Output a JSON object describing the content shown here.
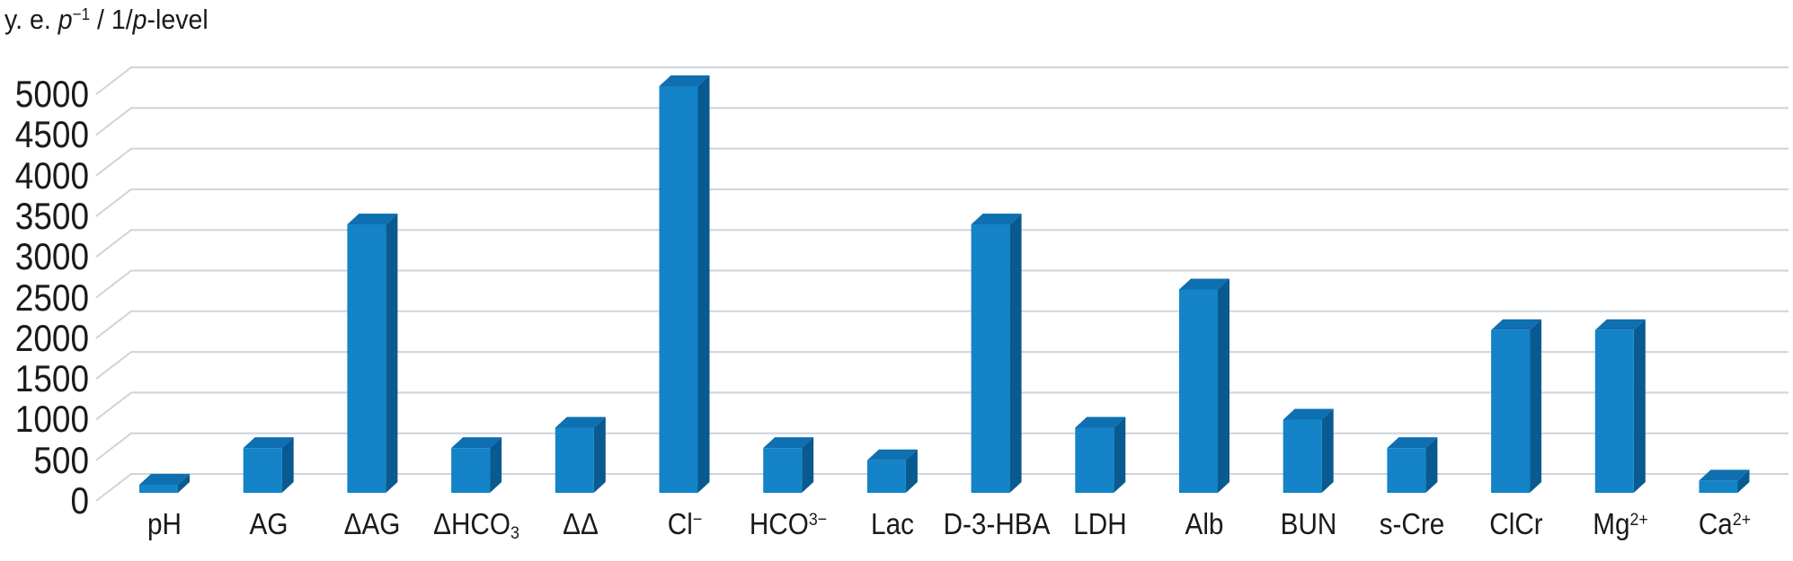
{
  "background_color": "#ffffff",
  "text_color": "#1a1a1a",
  "chart_data": {
    "type": "bar",
    "style": "3d-column",
    "title": "y. e. p⁻¹ / 1/p-level",
    "title_segments": [
      {
        "t": "y. e. "
      },
      {
        "t": "p",
        "i": true
      },
      {
        "t": "−1",
        "sup": true
      },
      {
        "t": " / 1/"
      },
      {
        "t": "p",
        "i": true
      },
      {
        "t": "-level"
      }
    ],
    "categories": [
      "pH",
      "AG",
      "ΔAG",
      "ΔHCO₃",
      "ΔΔ",
      "Cl⁻",
      "HCO³⁻",
      "Lac",
      "D-3-HBA",
      "LDH",
      "Alb",
      "BUN",
      "s-Cre",
      "ClCr",
      "Mg²⁺",
      "Ca²⁺"
    ],
    "category_segments": [
      [
        {
          "t": "pH"
        }
      ],
      [
        {
          "t": "AG"
        }
      ],
      [
        {
          "t": "ΔAG"
        }
      ],
      [
        {
          "t": "ΔHCO"
        },
        {
          "t": "3",
          "sub": true
        }
      ],
      [
        {
          "t": "ΔΔ"
        }
      ],
      [
        {
          "t": "Cl"
        },
        {
          "t": "−",
          "sup": true
        }
      ],
      [
        {
          "t": "HCO"
        },
        {
          "t": "3−",
          "sup": true
        }
      ],
      [
        {
          "t": "Lac"
        }
      ],
      [
        {
          "t": "D-3-HBA"
        }
      ],
      [
        {
          "t": "LDH"
        }
      ],
      [
        {
          "t": "Alb"
        }
      ],
      [
        {
          "t": "BUN"
        }
      ],
      [
        {
          "t": "s-Cre"
        }
      ],
      [
        {
          "t": "ClCr"
        }
      ],
      [
        {
          "t": "Mg"
        },
        {
          "t": "2+",
          "sup": true
        }
      ],
      [
        {
          "t": "Ca"
        },
        {
          "t": "2+",
          "sup": true
        }
      ]
    ],
    "values": [
      100,
      550,
      3300,
      550,
      800,
      5000,
      550,
      400,
      3300,
      800,
      2500,
      900,
      550,
      2000,
      2000,
      150
    ],
    "xlabel": "",
    "ylabel": "y. e. p⁻¹ / 1/p-level",
    "ylim": [
      0,
      5000
    ],
    "yticks": [
      0,
      500,
      1000,
      1500,
      2000,
      2500,
      3000,
      3500,
      4000,
      4500,
      5000
    ],
    "grid": true,
    "legend_position": "none",
    "colors": {
      "bar_front": "#1483c7",
      "bar_top": "#0e6fb1",
      "bar_side": "#0a5a92",
      "gridline": "#ccd5dc"
    }
  }
}
